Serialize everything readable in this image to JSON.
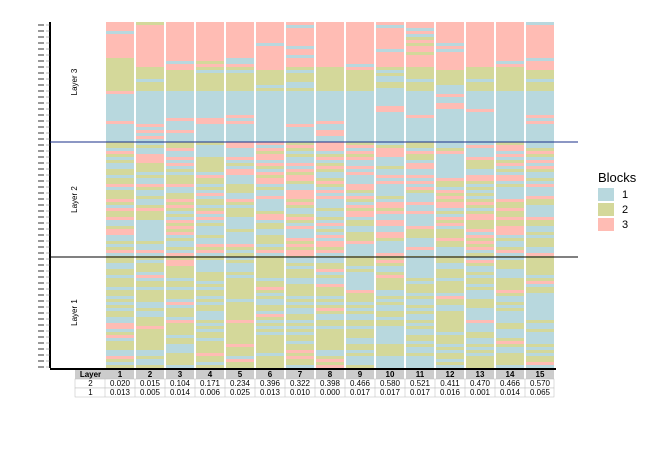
{
  "chart_data": {
    "type": "bar",
    "orientation": "stacked-columns-by-layer",
    "title": "",
    "xlabel": "",
    "ylabel": "",
    "columns": [
      "1",
      "2",
      "3",
      "4",
      "5",
      "6",
      "7",
      "8",
      "9",
      "10",
      "11",
      "12",
      "13",
      "14",
      "15"
    ],
    "layers": [
      {
        "name": "Layer 1",
        "composition": {
          "1": [
            0.3,
            0.32,
            0.28,
            0.27,
            0.25,
            0.3,
            0.32,
            0.34,
            0.4,
            0.45,
            0.47,
            0.38,
            0.4,
            0.45,
            0.42
          ],
          "2": [
            0.62,
            0.6,
            0.64,
            0.65,
            0.67,
            0.62,
            0.6,
            0.58,
            0.54,
            0.5,
            0.48,
            0.56,
            0.56,
            0.5,
            0.52
          ],
          "3": [
            0.08,
            0.08,
            0.08,
            0.08,
            0.08,
            0.08,
            0.08,
            0.08,
            0.06,
            0.05,
            0.05,
            0.06,
            0.04,
            0.05,
            0.06
          ]
        }
      },
      {
        "name": "Layer 2",
        "composition": {
          "1": [
            0.4,
            0.42,
            0.38,
            0.48,
            0.4,
            0.38,
            0.36,
            0.4,
            0.5,
            0.55,
            0.55,
            0.4,
            0.4,
            0.38,
            0.35
          ],
          "2": [
            0.4,
            0.38,
            0.4,
            0.32,
            0.35,
            0.3,
            0.32,
            0.3,
            0.25,
            0.22,
            0.22,
            0.32,
            0.32,
            0.34,
            0.35
          ],
          "3": [
            0.2,
            0.2,
            0.22,
            0.2,
            0.25,
            0.32,
            0.32,
            0.3,
            0.25,
            0.23,
            0.23,
            0.28,
            0.28,
            0.28,
            0.3
          ]
        }
      },
      {
        "name": "Layer 3",
        "composition": {
          "1": [
            0.45,
            0.45,
            0.45,
            0.45,
            0.45,
            0.45,
            0.45,
            0.45,
            0.45,
            0.45,
            0.45,
            0.45,
            0.45,
            0.45,
            0.45
          ],
          "2": [
            0.2,
            0.2,
            0.2,
            0.2,
            0.2,
            0.2,
            0.2,
            0.2,
            0.2,
            0.2,
            0.2,
            0.2,
            0.2,
            0.2,
            0.2
          ],
          "3": [
            0.35,
            0.35,
            0.35,
            0.35,
            0.35,
            0.35,
            0.35,
            0.35,
            0.35,
            0.35,
            0.35,
            0.35,
            0.35,
            0.35,
            0.35
          ]
        }
      }
    ],
    "legend": {
      "title": "Blocks",
      "entries": [
        "1",
        "2",
        "3"
      ],
      "placement": "right"
    },
    "colors": {
      "1": "#b8d8de",
      "2": "#d4d89a",
      "3": "#ffbcb4"
    },
    "table": {
      "header_label": "Layer",
      "rows": [
        {
          "label": "2",
          "values": [
            "0.020",
            "0.015",
            "0.104",
            "0.171",
            "0.234",
            "0.396",
            "0.322",
            "0.398",
            "0.466",
            "0.580",
            "0.521",
            "0.411",
            "0.470",
            "0.466",
            "0.570"
          ]
        },
        {
          "label": "1",
          "values": [
            "0.013",
            "0.005",
            "0.014",
            "0.006",
            "0.025",
            "0.013",
            "0.010",
            "0.000",
            "0.017",
            "0.017",
            "0.017",
            "0.016",
            "0.001",
            "0.014",
            "0.065"
          ]
        }
      ]
    }
  }
}
